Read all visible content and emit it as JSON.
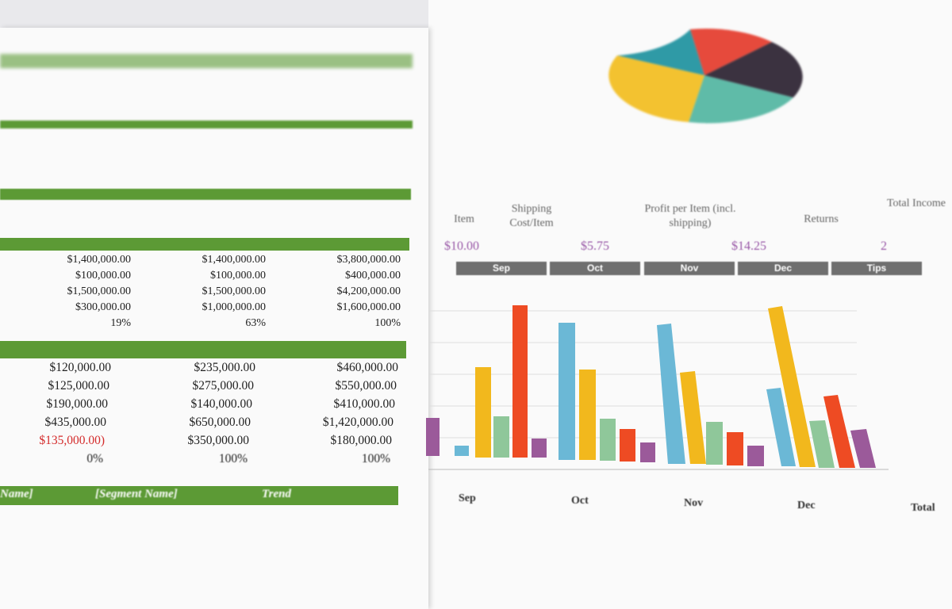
{
  "left_sheet": {
    "section1": [
      [
        "$1,400,000.00",
        "$1,400,000.00",
        "$3,800,000.00"
      ],
      [
        "$100,000.00",
        "$100,000.00",
        "$400,000.00"
      ],
      [
        "$1,500,000.00",
        "$1,500,000.00",
        "$4,200,000.00"
      ],
      [
        "$300,000.00",
        "$1,000,000.00",
        "$1,600,000.00"
      ],
      [
        "19%",
        "63%",
        "100%"
      ]
    ],
    "section2": [
      [
        "$120,000.00",
        "$235,000.00",
        "$460,000.00"
      ],
      [
        "$125,000.00",
        "$275,000.00",
        "$550,000.00"
      ],
      [
        "$190,000.00",
        "$140,000.00",
        "$410,000.00"
      ],
      [
        "$435,000.00",
        "$650,000.00",
        "$1,420,000.00"
      ],
      [
        "$135,000.00)",
        "$350,000.00",
        "$180,000.00"
      ],
      [
        "0%",
        "100%",
        "100%"
      ]
    ],
    "footer_header": [
      "Name]",
      "[Segment Name]",
      "Trend"
    ]
  },
  "right_sheet": {
    "headers": [
      "Item",
      "Shipping Cost/Item",
      "Profit per Item (incl. shipping)",
      "Returns",
      "Total Income"
    ],
    "values": [
      "$10.00",
      "$5.75",
      "$14.25",
      "2"
    ],
    "months": [
      "Sep",
      "Oct",
      "Nov",
      "Dec",
      "Tips"
    ],
    "bottom_headers": [
      "Sep",
      "Oct",
      "Nov",
      "Dec",
      "Total"
    ]
  }
}
